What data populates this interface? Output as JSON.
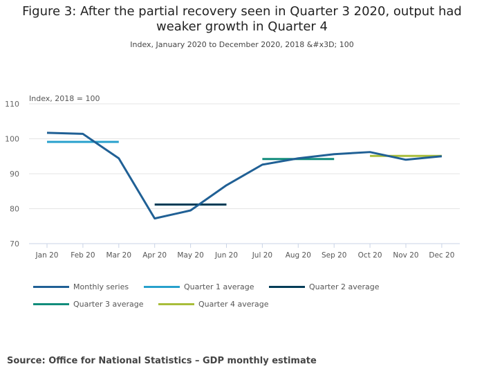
{
  "title": "Figure 3: After the partial recovery seen in Quarter 3 2020, output had weaker growth in Quarter 4",
  "subtitle": "Index, January 2020 to December 2020, 2018 &#x3D; 100",
  "source": "Source:  Office for National Statistics – GDP monthly estimate",
  "chart_data": {
    "type": "line",
    "ylabel": "Index, 2018 = 100",
    "ylim": [
      70,
      110
    ],
    "yticks": [
      70,
      80,
      90,
      100,
      110
    ],
    "grid": true,
    "legend_position": "bottom",
    "categories": [
      "Jan 20",
      "Feb 20",
      "Mar 20",
      "Apr 20",
      "May 20",
      "Jun 20",
      "Jul 20",
      "Aug 20",
      "Sep 20",
      "Oct 20",
      "Nov 20",
      "Dec 20"
    ],
    "series": [
      {
        "name": "Monthly series",
        "color": "#206095",
        "values": [
          101.7,
          101.4,
          94.4,
          77.2,
          79.5,
          86.7,
          92.6,
          94.4,
          95.6,
          96.2,
          94.0,
          95.0
        ]
      },
      {
        "name": "Quarter 1 average",
        "color": "#27a0cc",
        "values": [
          99.1,
          99.1,
          99.1,
          null,
          null,
          null,
          null,
          null,
          null,
          null,
          null,
          null
        ]
      },
      {
        "name": "Quarter 2 average",
        "color": "#003c57",
        "values": [
          null,
          null,
          null,
          81.2,
          81.2,
          81.2,
          null,
          null,
          null,
          null,
          null,
          null
        ]
      },
      {
        "name": "Quarter 3 average",
        "color": "#118c7b",
        "values": [
          null,
          null,
          null,
          null,
          null,
          null,
          94.2,
          94.2,
          94.2,
          null,
          null,
          null
        ]
      },
      {
        "name": "Quarter 4 average",
        "color": "#a8bd3a",
        "values": [
          null,
          null,
          null,
          null,
          null,
          null,
          null,
          null,
          null,
          95.1,
          95.1,
          95.1
        ]
      }
    ]
  }
}
